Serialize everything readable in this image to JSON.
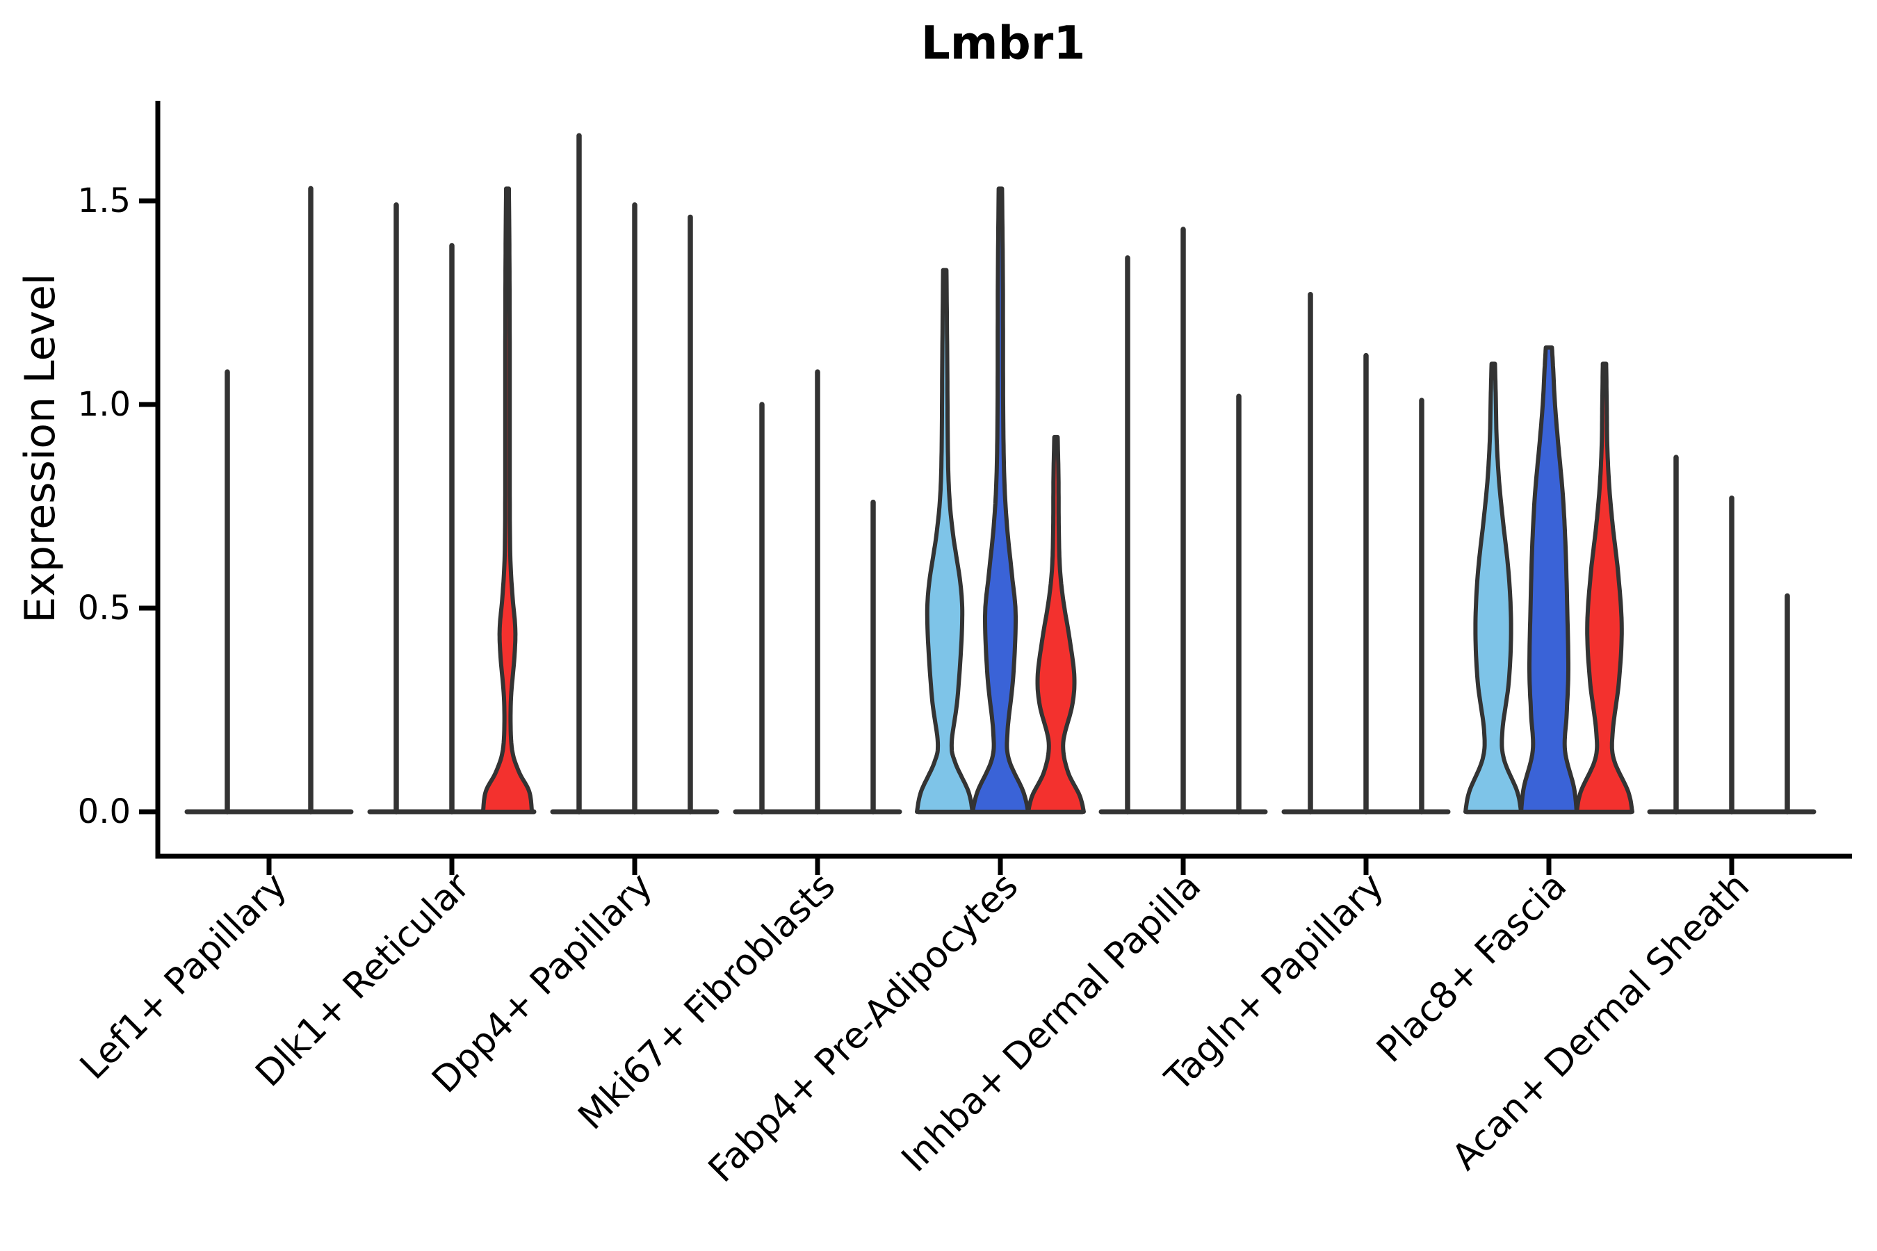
{
  "title": "Lmbr1",
  "y_axis": {
    "label": "Expression Level",
    "tick_labels": [
      "0.0",
      "0.5",
      "1.0",
      "1.5"
    ],
    "tick_values": [
      0.0,
      0.5,
      1.0,
      1.5
    ]
  },
  "x_axis": {
    "categories": [
      "Lef1+ Papillary",
      "Dlk1+ Reticular",
      "Dpp4+ Papillary",
      "Mki67+ Fibroblasts",
      "Fabp4+ Pre-Adipocytes",
      "Inhba+ Dermal Papilla",
      "Tagln+ Papillary",
      "Plac8+ Fascia",
      "Acan+ Dermal Sheath"
    ]
  },
  "colors": {
    "light_blue": "#7EC4E8",
    "blue": "#3A63D7",
    "red": "#F3312E",
    "outline": "#333333",
    "axis": "#000000"
  },
  "chart_data": {
    "type": "violin",
    "title": "Lmbr1",
    "xlabel": "",
    "ylabel": "Expression Level",
    "ylim": [
      -0.11,
      1.75
    ],
    "yticks": [
      0.0,
      0.5,
      1.0,
      1.5
    ],
    "grid": false,
    "legend": "none",
    "splits": [
      "light_blue",
      "blue",
      "red"
    ],
    "categories": [
      "Lef1+ Papillary",
      "Dlk1+ Reticular",
      "Dpp4+ Papillary",
      "Mki67+ Fibroblasts",
      "Fabp4+ Pre-Adipocytes",
      "Inhba+ Dermal Papilla",
      "Tagln+ Papillary",
      "Plac8+ Fascia",
      "Acan+ Dermal Sheath"
    ],
    "groups": [
      {
        "category": "Lef1+ Papillary",
        "violins": [
          {
            "split": "light_blue",
            "max": 1.08,
            "shape": "spike"
          },
          {
            "split": "blue",
            "max": 1.53,
            "shape": "spike"
          }
        ]
      },
      {
        "category": "Dlk1+ Reticular",
        "violins": [
          {
            "split": "light_blue",
            "max": 1.49,
            "shape": "spike"
          },
          {
            "split": "blue",
            "max": 1.39,
            "shape": "spike"
          },
          {
            "split": "red",
            "max": 1.53,
            "shape": "violin",
            "profile": [
              [
                0,
                0.88
              ],
              [
                0.05,
                0.78
              ],
              [
                0.1,
                0.4
              ],
              [
                0.16,
                0.15
              ],
              [
                0.27,
                0.12
              ],
              [
                0.38,
                0.25
              ],
              [
                0.45,
                0.28
              ],
              [
                0.53,
                0.18
              ],
              [
                0.63,
                0.1
              ],
              [
                0.8,
                0.08
              ],
              [
                1.1,
                0.08
              ],
              [
                1.35,
                0.07
              ],
              [
                1.53,
                0.05
              ]
            ]
          }
        ]
      },
      {
        "category": "Dpp4+ Papillary",
        "violins": [
          {
            "split": "light_blue",
            "max": 1.66,
            "shape": "spike"
          },
          {
            "split": "blue",
            "max": 1.49,
            "shape": "spike"
          },
          {
            "split": "red",
            "max": 1.46,
            "shape": "spike"
          }
        ]
      },
      {
        "category": "Mki67+ Fibroblasts",
        "violins": [
          {
            "split": "light_blue",
            "max": 1.0,
            "shape": "spike"
          },
          {
            "split": "blue",
            "max": 1.08,
            "shape": "spike"
          },
          {
            "split": "red",
            "max": 0.76,
            "shape": "spike"
          }
        ]
      },
      {
        "category": "Fabp4+ Pre-Adipocytes",
        "violins": [
          {
            "split": "light_blue",
            "max": 1.33,
            "shape": "violin",
            "profile": [
              [
                0,
                1.0
              ],
              [
                0.05,
                0.85
              ],
              [
                0.12,
                0.38
              ],
              [
                0.17,
                0.25
              ],
              [
                0.28,
                0.46
              ],
              [
                0.45,
                0.62
              ],
              [
                0.55,
                0.58
              ],
              [
                0.68,
                0.3
              ],
              [
                0.78,
                0.16
              ],
              [
                0.9,
                0.11
              ],
              [
                1.1,
                0.09
              ],
              [
                1.33,
                0.06
              ]
            ]
          },
          {
            "split": "blue",
            "max": 1.53,
            "shape": "violin",
            "profile": [
              [
                0,
                1.0
              ],
              [
                0.05,
                0.82
              ],
              [
                0.13,
                0.3
              ],
              [
                0.2,
                0.26
              ],
              [
                0.33,
                0.46
              ],
              [
                0.48,
                0.55
              ],
              [
                0.58,
                0.42
              ],
              [
                0.7,
                0.24
              ],
              [
                0.82,
                0.14
              ],
              [
                1.0,
                0.1
              ],
              [
                1.3,
                0.09
              ],
              [
                1.53,
                0.06
              ]
            ]
          },
          {
            "split": "red",
            "max": 0.92,
            "shape": "violin",
            "profile": [
              [
                0,
                1.0
              ],
              [
                0.04,
                0.85
              ],
              [
                0.1,
                0.42
              ],
              [
                0.17,
                0.26
              ],
              [
                0.26,
                0.58
              ],
              [
                0.33,
                0.66
              ],
              [
                0.42,
                0.5
              ],
              [
                0.52,
                0.26
              ],
              [
                0.6,
                0.14
              ],
              [
                0.7,
                0.1
              ],
              [
                0.82,
                0.09
              ],
              [
                0.92,
                0.06
              ]
            ]
          }
        ]
      },
      {
        "category": "Inhba+ Dermal Papilla",
        "violins": [
          {
            "split": "light_blue",
            "max": 1.36,
            "shape": "spike"
          },
          {
            "split": "blue",
            "max": 1.43,
            "shape": "spike"
          },
          {
            "split": "red",
            "max": 1.02,
            "shape": "spike"
          }
        ]
      },
      {
        "category": "Tagln+ Papillary",
        "violins": [
          {
            "split": "light_blue",
            "max": 1.27,
            "shape": "spike"
          },
          {
            "split": "blue",
            "max": 1.12,
            "shape": "spike"
          },
          {
            "split": "red",
            "max": 1.01,
            "shape": "spike"
          }
        ]
      },
      {
        "category": "Plac8+ Fascia",
        "violins": [
          {
            "split": "light_blue",
            "max": 1.1,
            "shape": "violin",
            "profile": [
              [
                0,
                1.0
              ],
              [
                0.05,
                0.86
              ],
              [
                0.13,
                0.38
              ],
              [
                0.2,
                0.33
              ],
              [
                0.32,
                0.56
              ],
              [
                0.45,
                0.64
              ],
              [
                0.58,
                0.56
              ],
              [
                0.72,
                0.34
              ],
              [
                0.82,
                0.2
              ],
              [
                0.92,
                0.12
              ],
              [
                1.02,
                0.09
              ],
              [
                1.1,
                0.06
              ]
            ]
          },
          {
            "split": "blue",
            "max": 1.14,
            "shape": "violin",
            "profile": [
              [
                0,
                1.0
              ],
              [
                0.06,
                0.9
              ],
              [
                0.15,
                0.58
              ],
              [
                0.24,
                0.64
              ],
              [
                0.35,
                0.7
              ],
              [
                0.5,
                0.66
              ],
              [
                0.65,
                0.6
              ],
              [
                0.78,
                0.5
              ],
              [
                0.9,
                0.34
              ],
              [
                1.0,
                0.22
              ],
              [
                1.08,
                0.16
              ],
              [
                1.14,
                0.11
              ]
            ]
          },
          {
            "split": "red",
            "max": 1.1,
            "shape": "violin",
            "profile": [
              [
                0,
                1.0
              ],
              [
                0.05,
                0.85
              ],
              [
                0.13,
                0.33
              ],
              [
                0.2,
                0.3
              ],
              [
                0.32,
                0.52
              ],
              [
                0.45,
                0.62
              ],
              [
                0.58,
                0.5
              ],
              [
                0.7,
                0.3
              ],
              [
                0.8,
                0.17
              ],
              [
                0.9,
                0.1
              ],
              [
                1.0,
                0.08
              ],
              [
                1.1,
                0.06
              ]
            ]
          }
        ]
      },
      {
        "category": "Acan+ Dermal Sheath",
        "violins": [
          {
            "split": "light_blue",
            "max": 0.87,
            "shape": "spike"
          },
          {
            "split": "blue",
            "max": 0.77,
            "shape": "spike"
          },
          {
            "split": "red",
            "max": 0.53,
            "shape": "spike"
          }
        ]
      }
    ]
  }
}
